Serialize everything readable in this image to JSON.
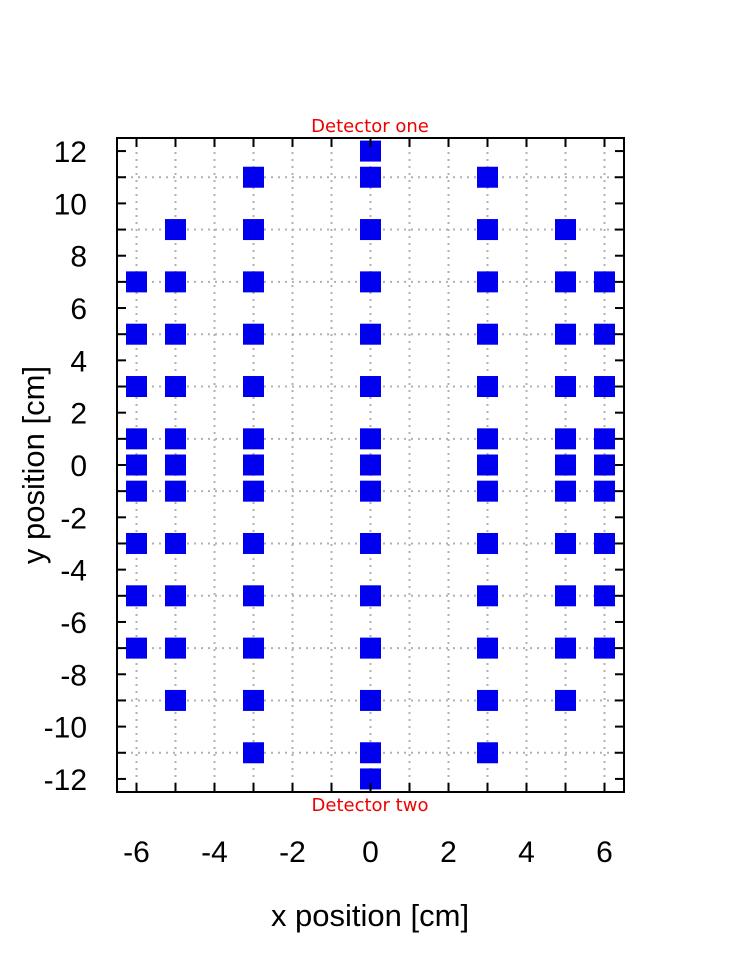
{
  "chart_data": {
    "type": "scatter",
    "xlabel": "x position [cm]",
    "ylabel": "y position [cm]",
    "xlim": [
      -6.5,
      6.5
    ],
    "ylim": [
      -12.5,
      12.5
    ],
    "xticks": [
      -6,
      -4,
      -2,
      0,
      2,
      4,
      6
    ],
    "yticks": [
      -12,
      -10,
      -8,
      -6,
      -4,
      -2,
      0,
      2,
      4,
      6,
      8,
      10,
      12
    ],
    "xgrid": [
      -6,
      -5,
      -4,
      -3,
      -2,
      -1,
      0,
      1,
      2,
      3,
      4,
      5,
      6
    ],
    "ygrid": [
      -11,
      -9,
      -7,
      -5,
      -3,
      -1,
      1,
      3,
      5,
      7,
      9,
      11
    ],
    "grid": true,
    "marker": "square",
    "marker_color": "#0000ee",
    "annotation_color": "#ee0000",
    "annotations": {
      "top": "Detector one",
      "bottom": "Detector two"
    },
    "points": [
      [
        0,
        12
      ],
      [
        0,
        -12
      ],
      [
        -3,
        11
      ],
      [
        0,
        11
      ],
      [
        3,
        11
      ],
      [
        -5,
        9
      ],
      [
        -3,
        9
      ],
      [
        0,
        9
      ],
      [
        3,
        9
      ],
      [
        5,
        9
      ],
      [
        -6,
        7
      ],
      [
        -5,
        7
      ],
      [
        -3,
        7
      ],
      [
        0,
        7
      ],
      [
        3,
        7
      ],
      [
        5,
        7
      ],
      [
        6,
        7
      ],
      [
        -6,
        5
      ],
      [
        -5,
        5
      ],
      [
        -3,
        5
      ],
      [
        0,
        5
      ],
      [
        3,
        5
      ],
      [
        5,
        5
      ],
      [
        6,
        5
      ],
      [
        -6,
        3
      ],
      [
        -5,
        3
      ],
      [
        -3,
        3
      ],
      [
        0,
        3
      ],
      [
        3,
        3
      ],
      [
        5,
        3
      ],
      [
        6,
        3
      ],
      [
        -6,
        1
      ],
      [
        -5,
        1
      ],
      [
        -3,
        1
      ],
      [
        0,
        1
      ],
      [
        3,
        1
      ],
      [
        5,
        1
      ],
      [
        6,
        1
      ],
      [
        -6,
        0
      ],
      [
        -5,
        0
      ],
      [
        -3,
        0
      ],
      [
        0,
        0
      ],
      [
        3,
        0
      ],
      [
        5,
        0
      ],
      [
        6,
        0
      ],
      [
        -6,
        -1
      ],
      [
        -5,
        -1
      ],
      [
        -3,
        -1
      ],
      [
        0,
        -1
      ],
      [
        3,
        -1
      ],
      [
        5,
        -1
      ],
      [
        6,
        -1
      ],
      [
        -6,
        -3
      ],
      [
        -5,
        -3
      ],
      [
        -3,
        -3
      ],
      [
        0,
        -3
      ],
      [
        3,
        -3
      ],
      [
        5,
        -3
      ],
      [
        6,
        -3
      ],
      [
        -6,
        -5
      ],
      [
        -5,
        -5
      ],
      [
        -3,
        -5
      ],
      [
        0,
        -5
      ],
      [
        3,
        -5
      ],
      [
        5,
        -5
      ],
      [
        6,
        -5
      ],
      [
        -6,
        -7
      ],
      [
        -5,
        -7
      ],
      [
        -3,
        -7
      ],
      [
        0,
        -7
      ],
      [
        3,
        -7
      ],
      [
        5,
        -7
      ],
      [
        6,
        -7
      ],
      [
        -5,
        -9
      ],
      [
        -3,
        -9
      ],
      [
        0,
        -9
      ],
      [
        3,
        -9
      ],
      [
        5,
        -9
      ],
      [
        -3,
        -11
      ],
      [
        0,
        -11
      ],
      [
        3,
        -11
      ]
    ]
  }
}
